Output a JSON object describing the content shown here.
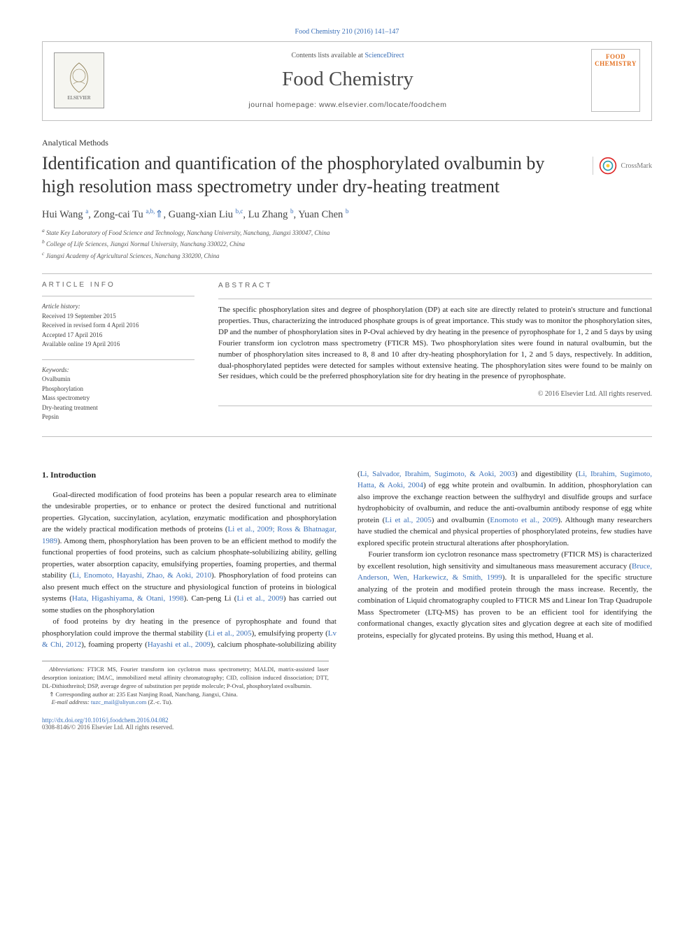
{
  "header": {
    "citation": "Food Chemistry 210 (2016) 141–147",
    "contents_prefix": "Contents lists available at ",
    "contents_link": "ScienceDirect",
    "journal": "Food Chemistry",
    "homepage_prefix": "journal homepage: ",
    "homepage": "www.elsevier.com/locate/foodchem",
    "elsevier_label": "ELSEVIER",
    "cover_label_1": "FOOD",
    "cover_label_2": "CHEMISTRY"
  },
  "article": {
    "section": "Analytical Methods",
    "title": "Identification and quantification of the phosphorylated ovalbumin by high resolution mass spectrometry under dry-heating treatment",
    "crossmark": "CrossMark",
    "authors_html": "Hui Wang <sup>a</sup>, Zong-cai Tu <sup>a,b,</sup><span class='star'>⇑</span>, Guang-xian Liu <sup>b,c</sup>, Lu Zhang <sup>b</sup>, Yuan Chen <sup>b</sup>",
    "affiliations": [
      "a State Key Laboratory of Food Science and Technology, Nanchang University, Nanchang, Jiangxi 330047, China",
      "b College of Life Sciences, Jiangxi Normal University, Nanchang 330022, China",
      "c Jiangxi Academy of Agricultural Sciences, Nanchang 330200, China"
    ]
  },
  "info": {
    "head": "ARTICLE INFO",
    "history_label": "Article history:",
    "history": [
      "Received 19 September 2015",
      "Received in revised form 4 April 2016",
      "Accepted 17 April 2016",
      "Available online 19 April 2016"
    ],
    "keywords_label": "Keywords:",
    "keywords": [
      "Ovalbumin",
      "Phosphorylation",
      "Mass spectrometry",
      "Dry-heating treatment",
      "Pepsin"
    ]
  },
  "abstract": {
    "head": "ABSTRACT",
    "text": "The specific phosphorylation sites and degree of phosphorylation (DP) at each site are directly related to protein's structure and functional properties. Thus, characterizing the introduced phosphate groups is of great importance. This study was to monitor the phosphorylation sites, DP and the number of phosphorylation sites in P-Oval achieved by dry heating in the presence of pyrophosphate for 1, 2 and 5 days by using Fourier transform ion cyclotron mass spectrometry (FTICR MS). Two phosphorylation sites were found in natural ovalbumin, but the number of phosphorylation sites increased to 8, 8 and 10 after dry-heating phosphorylation for 1, 2 and 5 days, respectively. In addition, dual-phosphorylated peptides were detected for samples without extensive heating. The phosphorylation sites were found to be mainly on Ser residues, which could be the preferred phosphorylation site for dry heating in the presence of pyrophosphate.",
    "copyright": "© 2016 Elsevier Ltd. All rights reserved."
  },
  "body": {
    "intro_head": "1. Introduction",
    "p1": "Goal-directed modification of food proteins has been a popular research area to eliminate the undesirable properties, or to enhance or protect the desired functional and nutritional properties. Glycation, succinylation, acylation, enzymatic modification and phosphorylation are the widely practical modification methods of proteins (<a>Li et al., 2009; Ross & Bhatnagar, 1989</a>). Among them, phosphorylation has been proven to be an efficient method to modify the functional properties of food proteins, such as calcium phosphate-solubilizing ability, gelling properties, water absorption capacity, emulsifying properties, foaming properties, and thermal stability (<a>Li, Enomoto, Hayashi, Zhao, & Aoki, 2010</a>). Phosphorylation of food proteins can also present much effect on the structure and physiological function of proteins in biological systems (<a>Hata, Higashiyama, & Otani, 1998</a>). Can-peng Li (<a>Li et al., 2009</a>) has carried out some studies on the phosphorylation",
    "p2": "of food proteins by dry heating in the presence of pyrophosphate and found that phosphorylation could improve the thermal stability (<a>Li et al., 2005</a>), emulsifying property (<a>Lv & Chi, 2012</a>), foaming property (<a>Hayashi et al., 2009</a>), calcium phosphate-solubilizing ability (<a>Li, Salvador, Ibrahim, Sugimoto, & Aoki, 2003</a>) and digestibility (<a>Li, Ibrahim, Sugimoto, Hatta, & Aoki, 2004</a>) of egg white protein and ovalbumin. In addition, phosphorylation can also improve the exchange reaction between the sulfhydryl and disulfide groups and surface hydrophobicity of ovalbumin, and reduce the anti-ovalbumin antibody response of egg white protein (<a>Li et al., 2005</a>) and ovalbumin (<a>Enomoto et al., 2009</a>). Although many researchers have studied the chemical and physical properties of phosphorylated proteins, few studies have explored specific protein structural alterations after phosphorylation.",
    "p3": "Fourier transform ion cyclotron resonance mass spectrometry (FTICR MS) is characterized by excellent resolution, high sensitivity and simultaneous mass measurement accuracy (<a>Bruce, Anderson, Wen, Harkewicz, & Smith, 1999</a>). It is unparalleled for the specific structure analyzing of the protein and modified protein through the mass increase. Recently, the combination of Liquid chromatography coupled to FTICR MS and Linear Ion Trap Quadrupole Mass Spectrometer (LTQ-MS) has proven to be an efficient tool for identifying the conformational changes, exactly glycation sites and glycation degree at each site of modified proteins, especially for glycated proteins. By using this method, Huang et al."
  },
  "footnotes": {
    "abbr_label": "Abbreviations:",
    "abbr": " FTICR MS, Fourier transform ion cyclotron mass spectrometry; MALDI, matrix-assisted laser desorption ionization; IMAC, immobilized metal affinity chromatography; CID, collision induced dissociation; DTT, DL-Dithiothreitol; DSP, average degree of substitution per peptide molecule; P-Oval, phosphorylated ovalbumin.",
    "corr": "⇑ Corresponding author at: 235 East Nanjing Road, Nanchang, Jiangxi, China.",
    "email_label": "E-mail address: ",
    "email": "tuzc_mail@aliyun.com",
    "email_tail": " (Z.-c. Tu)."
  },
  "bottom": {
    "doi": "http://dx.doi.org/10.1016/j.foodchem.2016.04.082",
    "issn": "0308-8146/© 2016 Elsevier Ltd. All rights reserved."
  },
  "colors": {
    "link": "#3a6fb7",
    "text": "#262626",
    "muted": "#555555",
    "rule": "#bfbfbf",
    "orange": "#e36f1e"
  }
}
